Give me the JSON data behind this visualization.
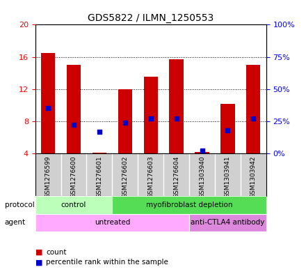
{
  "title": "GDS5822 / ILMN_1250553",
  "samples": [
    "GSM1276599",
    "GSM1276600",
    "GSM1276601",
    "GSM1276602",
    "GSM1276603",
    "GSM1276604",
    "GSM1303940",
    "GSM1303941",
    "GSM1303942"
  ],
  "counts": [
    16.5,
    15.0,
    4.1,
    12.0,
    13.5,
    15.7,
    4.2,
    10.2,
    15.0
  ],
  "percentile_ranks": [
    35,
    22,
    17,
    24,
    27,
    27,
    2,
    18,
    27
  ],
  "ylim_left": [
    4,
    20
  ],
  "ylim_right": [
    0,
    100
  ],
  "yticks_left": [
    4,
    8,
    12,
    16,
    20
  ],
  "yticks_right": [
    0,
    25,
    50,
    75,
    100
  ],
  "bar_color": "#cc0000",
  "dot_color": "#0000cc",
  "bar_width": 0.55,
  "protocol_labels": [
    {
      "text": "control",
      "start": 0,
      "end": 3,
      "color": "#bbffbb"
    },
    {
      "text": "myofibroblast depletion",
      "start": 3,
      "end": 9,
      "color": "#55dd55"
    }
  ],
  "agent_labels": [
    {
      "text": "untreated",
      "start": 0,
      "end": 6,
      "color": "#ffaaff"
    },
    {
      "text": "anti-CTLA4 antibody",
      "start": 6,
      "end": 9,
      "color": "#dd88dd"
    }
  ],
  "legend_count_color": "#cc0000",
  "legend_percentile_color": "#0000cc",
  "sample_label_bg": "#d0d0d0",
  "plot_bg": "#ffffff"
}
